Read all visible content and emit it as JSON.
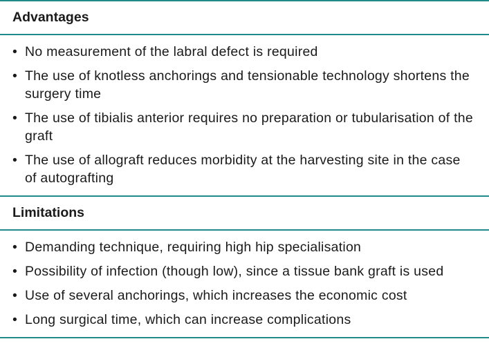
{
  "sections": [
    {
      "title": "Advantages",
      "items": [
        "No measurement of the labral defect is required",
        "The use of knotless anchorings and tensionable technology shortens the surgery time",
        "The use of tibialis anterior requires no preparation or tubularisation of the graft",
        "The use of allograft reduces morbidity at the harvesting site in the case of autografting"
      ]
    },
    {
      "title": "Limitations",
      "items": [
        "Demanding technique, requiring high hip specialisation",
        "Possibility of infection (though low), since a tissue bank graft is used",
        "Use of several anchorings, which increases the economic cost",
        "Long surgical time, which can increase complications"
      ]
    }
  ],
  "bullet": "•",
  "colors": {
    "rule": "#1f8a8c"
  }
}
